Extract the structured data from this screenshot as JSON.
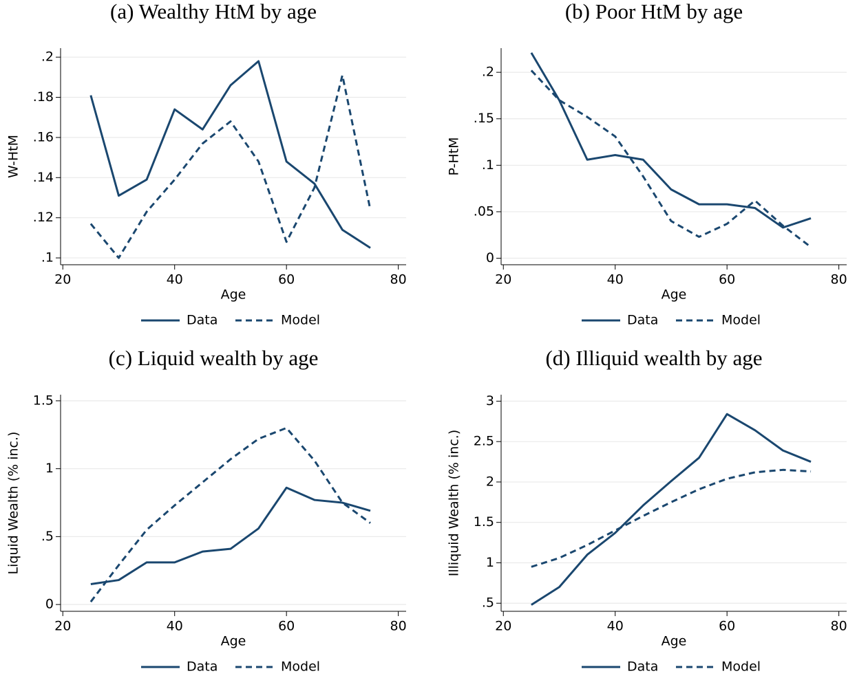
{
  "chart_data": [
    {
      "type": "line",
      "title": "(a) Wealthy HtM by age",
      "x_label": "Age",
      "y_label": "W-HtM",
      "x": [
        25,
        30,
        35,
        40,
        45,
        50,
        55,
        60,
        65,
        70,
        75
      ],
      "series": [
        {
          "name": "Data",
          "color": "#1a476f",
          "style": "solid",
          "values": [
            0.181,
            0.131,
            0.139,
            0.174,
            0.164,
            0.186,
            0.198,
            0.148,
            0.137,
            0.114,
            0.105
          ]
        },
        {
          "name": "Model",
          "color": "#1a476f",
          "style": "dashed",
          "values": [
            0.117,
            0.1,
            0.123,
            0.139,
            0.157,
            0.168,
            0.148,
            0.108,
            0.135,
            0.191,
            0.124
          ]
        }
      ],
      "xlim": [
        19.6,
        81.4
      ],
      "xticks": [
        20,
        40,
        60,
        80
      ],
      "ylim": [
        0.0966,
        0.2045
      ],
      "yticks": [
        {
          "value": 0.1,
          "label": ".1"
        },
        {
          "value": 0.12,
          "label": ".12"
        },
        {
          "value": 0.14,
          "label": ".14"
        },
        {
          "value": 0.16,
          "label": ".16"
        },
        {
          "value": 0.18,
          "label": ".18"
        },
        {
          "value": 0.2,
          "label": ".2"
        }
      ],
      "grid": true
    },
    {
      "type": "line",
      "title": "(b) Poor HtM by age",
      "x_label": "Age",
      "y_label": "P-HtM",
      "x": [
        25,
        30,
        35,
        40,
        45,
        50,
        55,
        60,
        65,
        70,
        75
      ],
      "series": [
        {
          "name": "Data",
          "color": "#1a476f",
          "style": "solid",
          "values": [
            0.221,
            0.17,
            0.106,
            0.111,
            0.106,
            0.074,
            0.058,
            0.058,
            0.054,
            0.033,
            0.043
          ]
        },
        {
          "name": "Model",
          "color": "#1a476f",
          "style": "dashed",
          "values": [
            0.202,
            0.17,
            0.152,
            0.131,
            0.088,
            0.04,
            0.023,
            0.037,
            0.062,
            0.035,
            0.012
          ]
        }
      ],
      "xlim": [
        19.6,
        81.4
      ],
      "xticks": [
        20,
        40,
        60,
        80
      ],
      "ylim": [
        -0.007,
        0.226
      ],
      "yticks": [
        0,
        {
          "value": 0.05,
          "label": ".05"
        },
        {
          "value": 0.1,
          "label": ".1"
        },
        {
          "value": 0.15,
          "label": ".15"
        },
        {
          "value": 0.2,
          "label": ".2"
        }
      ],
      "grid": true
    },
    {
      "type": "line",
      "title": "(c) Liquid wealth by age",
      "x_label": "Age",
      "y_label": "Liquid Wealth (% inc.)",
      "x": [
        25,
        30,
        35,
        40,
        45,
        50,
        55,
        60,
        65,
        70,
        75
      ],
      "series": [
        {
          "name": "Data",
          "color": "#1a476f",
          "style": "solid",
          "values": [
            0.15,
            0.18,
            0.31,
            0.31,
            0.39,
            0.41,
            0.56,
            0.86,
            0.77,
            0.75,
            0.69
          ]
        },
        {
          "name": "Model",
          "color": "#1a476f",
          "style": "dashed",
          "values": [
            0.02,
            0.29,
            0.55,
            0.73,
            0.9,
            1.07,
            1.22,
            1.3,
            1.06,
            0.75,
            0.6
          ]
        }
      ],
      "xlim": [
        19.6,
        81.4
      ],
      "xticks": [
        20,
        40,
        60,
        80
      ],
      "ylim": [
        -0.05,
        1.545
      ],
      "yticks": [
        0,
        {
          "value": 0.5,
          "label": ".5"
        },
        1,
        1.5
      ],
      "grid": true
    },
    {
      "type": "line",
      "title": "(d) Illiquid wealth by age",
      "x_label": "Age",
      "y_label": "Illiquid Wealth (% inc.)",
      "x": [
        25,
        30,
        35,
        40,
        45,
        50,
        55,
        60,
        65,
        70,
        75
      ],
      "series": [
        {
          "name": "Data",
          "color": "#1a476f",
          "style": "solid",
          "values": [
            0.48,
            0.7,
            1.1,
            1.37,
            1.71,
            2.01,
            2.3,
            2.84,
            2.64,
            2.39,
            2.25
          ]
        },
        {
          "name": "Model",
          "color": "#1a476f",
          "style": "dashed",
          "values": [
            0.95,
            1.06,
            1.22,
            1.4,
            1.58,
            1.75,
            1.91,
            2.04,
            2.12,
            2.15,
            2.13
          ]
        }
      ],
      "xlim": [
        19.6,
        81.4
      ],
      "xticks": [
        20,
        40,
        60,
        80
      ],
      "ylim": [
        0.4,
        3.08
      ],
      "yticks": [
        {
          "value": 0.5,
          "label": ".5"
        },
        1,
        1.5,
        2,
        2.5,
        3
      ],
      "grid": true
    }
  ]
}
